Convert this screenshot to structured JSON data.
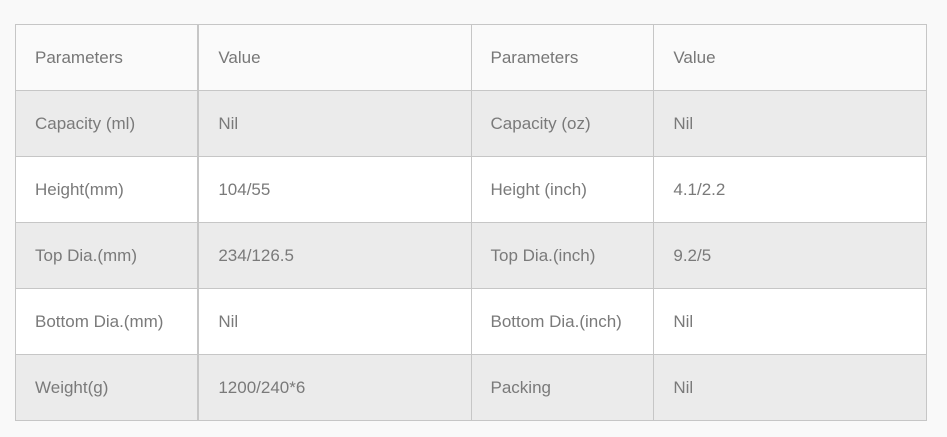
{
  "table": {
    "headers": [
      "Parameters",
      "Value",
      "Parameters",
      "Value"
    ],
    "rows": [
      [
        "Capacity (ml)",
        "Nil",
        "Capacity (oz)",
        "Nil"
      ],
      [
        "Height(mm)",
        "104/55",
        "Height (inch)",
        "4.1/2.2"
      ],
      [
        "Top Dia.(mm)",
        "234/126.5",
        "Top Dia.(inch)",
        "9.2/5"
      ],
      [
        "Bottom Dia.(mm)",
        "Nil",
        "Bottom Dia.(inch)",
        "Nil"
      ],
      [
        "Weight(g)",
        "1200/240*6",
        "Packing",
        "Nil"
      ]
    ]
  },
  "colors": {
    "row_shade": "#ebebeb",
    "row_plain": "#ffffff",
    "header_bg": "#fafafa",
    "border": "#c6c6c6",
    "text": "#7a7a7a"
  }
}
